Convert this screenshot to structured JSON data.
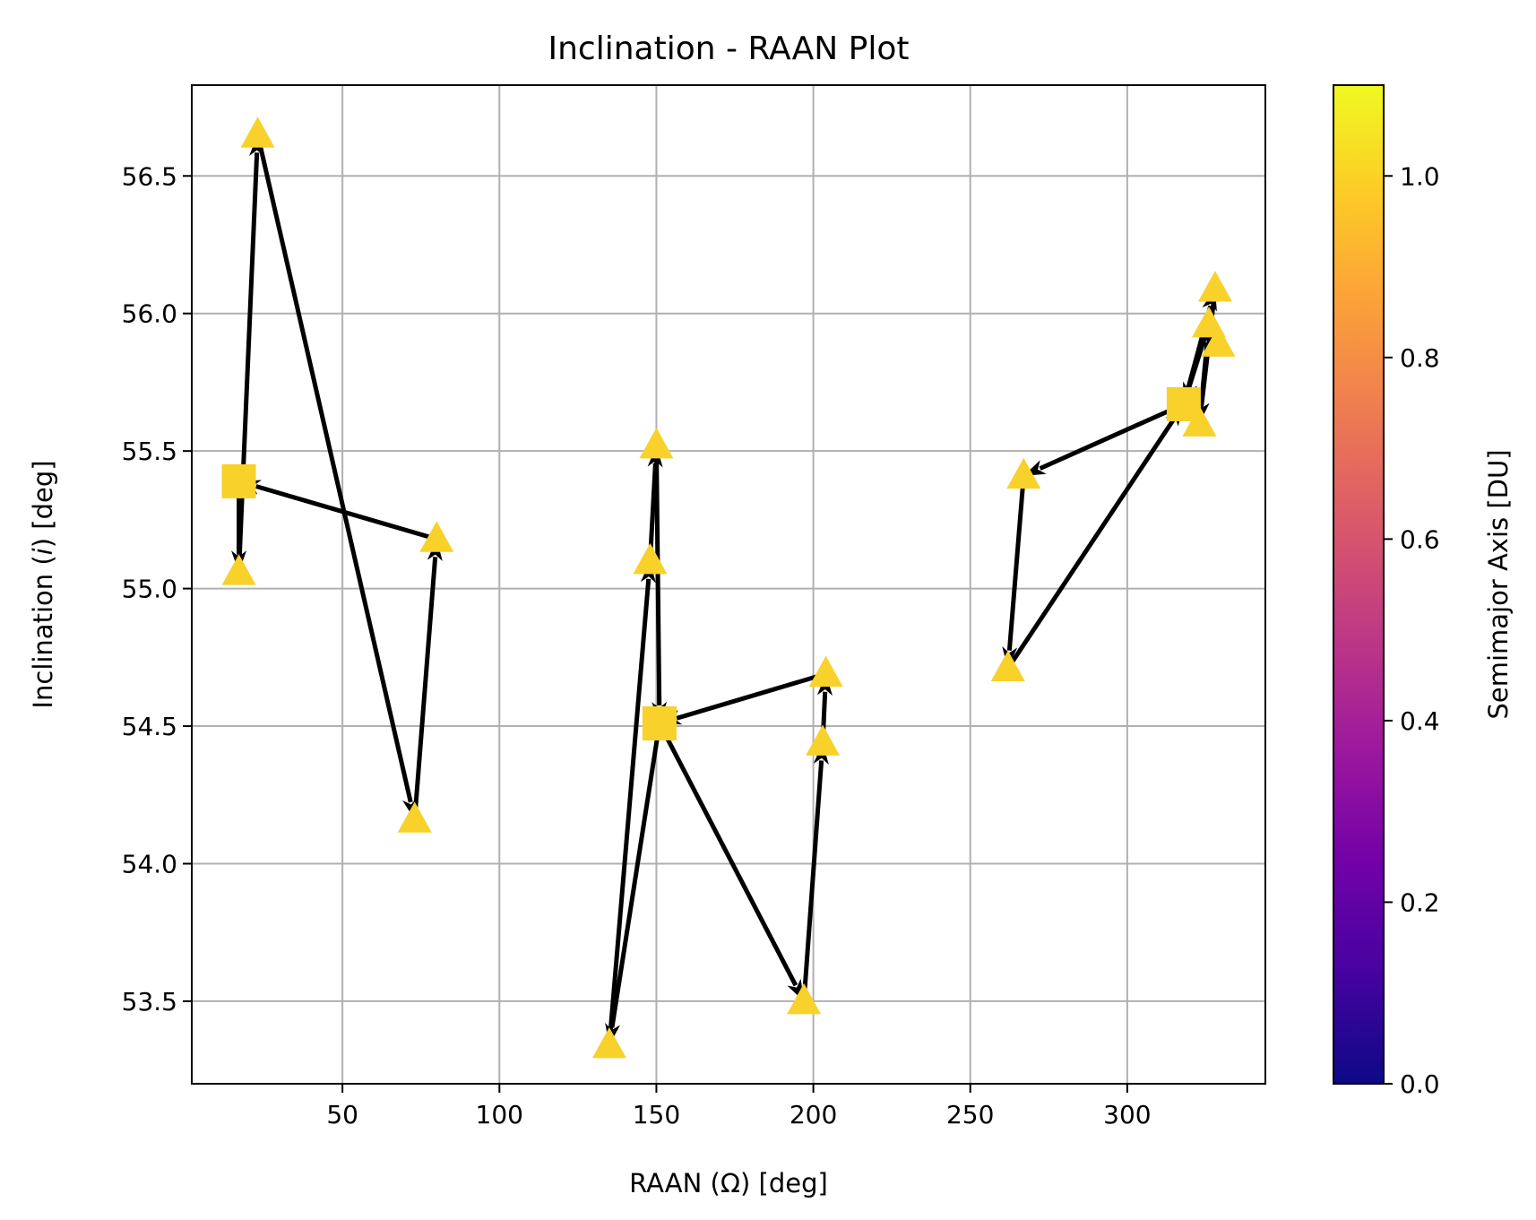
{
  "chart_data": {
    "type": "scatter",
    "title": "Inclination - RAAN Plot",
    "xlabel": "RAAN (Ω) [deg]",
    "ylabel_parts": [
      "Inclination (",
      "i",
      ") [deg]"
    ],
    "xlim": [
      2,
      344
    ],
    "ylim": [
      53.2,
      56.83
    ],
    "xticks": [
      50,
      100,
      150,
      200,
      250,
      300
    ],
    "yticks": [
      53.5,
      54.0,
      54.5,
      55.0,
      55.5,
      56.0,
      56.5
    ],
    "xtick_labels": [
      "50",
      "100",
      "150",
      "200",
      "250",
      "300"
    ],
    "ytick_labels": [
      "53.5",
      "54.0",
      "54.5",
      "55.0",
      "55.5",
      "56.0",
      "56.5"
    ],
    "grid": true,
    "marker_color": "#f8d12b",
    "arrow_color": "#000000",
    "squares": [
      {
        "x": 17,
        "y": 55.39
      },
      {
        "x": 151,
        "y": 54.51
      },
      {
        "x": 318,
        "y": 55.67
      }
    ],
    "triangles": [
      {
        "x": 23,
        "y": 56.65
      },
      {
        "x": 17,
        "y": 55.06
      },
      {
        "x": 80,
        "y": 55.18
      },
      {
        "x": 73,
        "y": 54.16
      },
      {
        "x": 150,
        "y": 55.52
      },
      {
        "x": 148,
        "y": 55.1
      },
      {
        "x": 135,
        "y": 53.34
      },
      {
        "x": 204,
        "y": 54.69
      },
      {
        "x": 203,
        "y": 54.44
      },
      {
        "x": 197,
        "y": 53.5
      },
      {
        "x": 267,
        "y": 55.41
      },
      {
        "x": 262,
        "y": 54.71
      },
      {
        "x": 328,
        "y": 56.09
      },
      {
        "x": 326,
        "y": 55.96
      },
      {
        "x": 329,
        "y": 55.89
      },
      {
        "x": 323,
        "y": 55.6
      }
    ],
    "arrows": [
      {
        "from": [
          17,
          55.39
        ],
        "to": [
          17,
          55.06
        ]
      },
      {
        "from": [
          17,
          55.06
        ],
        "to": [
          23,
          56.65
        ]
      },
      {
        "from": [
          23,
          56.65
        ],
        "to": [
          73,
          54.16
        ]
      },
      {
        "from": [
          73,
          54.16
        ],
        "to": [
          80,
          55.18
        ]
      },
      {
        "from": [
          80,
          55.18
        ],
        "to": [
          17,
          55.39
        ]
      },
      {
        "from": [
          151,
          54.51
        ],
        "to": [
          135,
          53.34
        ]
      },
      {
        "from": [
          135,
          53.34
        ],
        "to": [
          148,
          55.1
        ]
      },
      {
        "from": [
          148,
          55.1
        ],
        "to": [
          150,
          55.52
        ]
      },
      {
        "from": [
          150,
          55.52
        ],
        "to": [
          151,
          54.51
        ]
      },
      {
        "from": [
          151,
          54.51
        ],
        "to": [
          197,
          53.5
        ]
      },
      {
        "from": [
          197,
          53.5
        ],
        "to": [
          203,
          54.44
        ]
      },
      {
        "from": [
          203,
          54.44
        ],
        "to": [
          204,
          54.69
        ]
      },
      {
        "from": [
          204,
          54.69
        ],
        "to": [
          151,
          54.51
        ]
      },
      {
        "from": [
          318,
          55.67
        ],
        "to": [
          267,
          55.41
        ]
      },
      {
        "from": [
          267,
          55.41
        ],
        "to": [
          262,
          54.71
        ]
      },
      {
        "from": [
          262,
          54.71
        ],
        "to": [
          318,
          55.67
        ]
      },
      {
        "from": [
          318,
          55.67
        ],
        "to": [
          328,
          56.09
        ]
      },
      {
        "from": [
          328,
          56.09
        ],
        "to": [
          323,
          55.6
        ]
      },
      {
        "from": [
          323,
          55.6
        ],
        "to": [
          326,
          55.96
        ]
      },
      {
        "from": [
          326,
          55.96
        ],
        "to": [
          318,
          55.67
        ]
      }
    ],
    "colorbar": {
      "label": "Semimajor Axis [DU]",
      "colormap": "plasma",
      "range": [
        0,
        1.1
      ],
      "ticks": [
        0.0,
        0.2,
        0.4,
        0.6,
        0.8,
        1.0
      ],
      "tick_labels": [
        "0.0",
        "0.2",
        "0.4",
        "0.6",
        "0.8",
        "1.0"
      ],
      "stops": [
        "#0d0887",
        "#46039f",
        "#7201a8",
        "#9c179e",
        "#bd3786",
        "#d8576b",
        "#ed7953",
        "#fb9f3a",
        "#fdca26",
        "#f0f921"
      ]
    }
  }
}
